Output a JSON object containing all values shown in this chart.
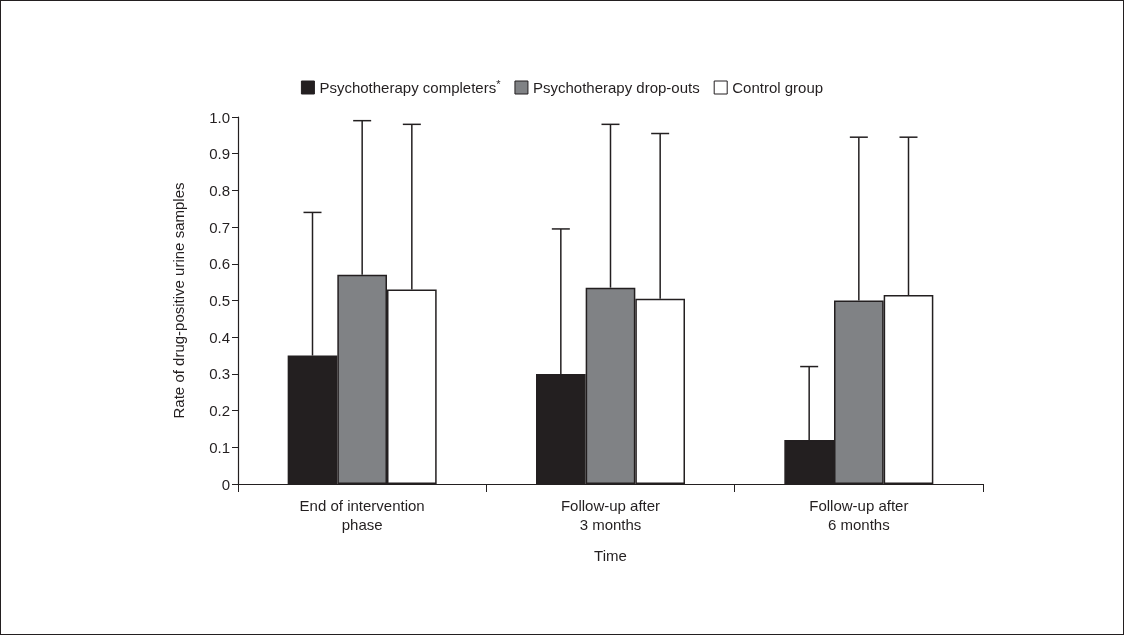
{
  "chart_data": {
    "type": "bar",
    "xlabel": "Time",
    "ylabel": "Rate of drug-positive urine samples",
    "categories": [
      "End of intervention\nphase",
      "Follow-up after\n3 months",
      "Follow-up after\n6 months"
    ],
    "series": [
      {
        "name": "Psychotherapy completers$^{*}$",
        "color": "#231f20",
        "values": [
          0.35,
          0.3,
          0.12
        ],
        "errors": [
          [
            0.35,
            0.74
          ],
          [
            0.3,
            0.695
          ],
          [
            0.12,
            0.32
          ]
        ]
      },
      {
        "name": "Psychotherapy drop-outs",
        "color": "#808285",
        "values": [
          0.57,
          0.535,
          0.5
        ],
        "errors": [
          [
            0.57,
            0.99
          ],
          [
            0.535,
            0.98
          ],
          [
            0.5,
            0.945
          ]
        ]
      },
      {
        "name": "Control group",
        "color": "#ffffff",
        "values": [
          0.53,
          0.505,
          0.515
        ],
        "errors": [
          [
            0.53,
            0.98
          ],
          [
            0.505,
            0.955
          ],
          [
            0.515,
            0.945
          ]
        ]
      }
    ],
    "ylim": [
      0,
      1
    ],
    "yticks": [
      0,
      0.1,
      0.2,
      0.3,
      0.4,
      0.5,
      0.6,
      0.7,
      0.8,
      0.9,
      {
        "value": 1,
        "label": "1.0"
      }
    ],
    "grid": false,
    "legend": "top"
  }
}
